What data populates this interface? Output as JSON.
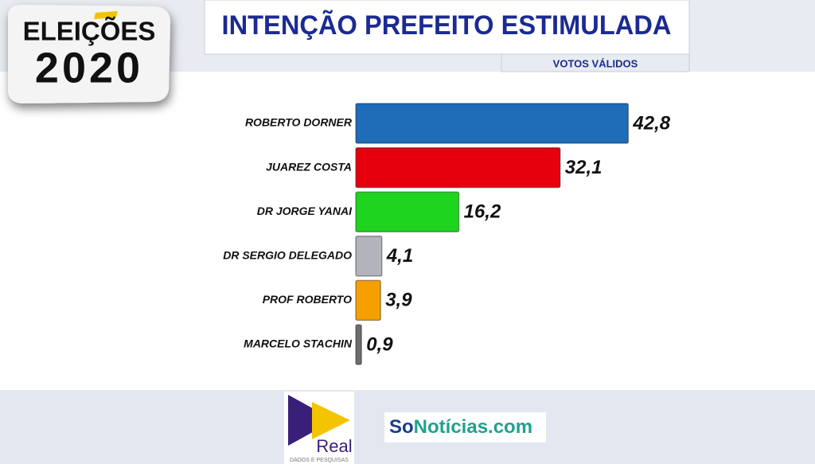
{
  "chart_data": {
    "type": "hbar",
    "title": "INTENÇÃO PREFEITO ESTIMULADA",
    "subtitle": "VOTOS VÁLIDOS",
    "categories": [
      "ROBERTO DORNER",
      "JUAREZ COSTA",
      "DR JORGE YANAI",
      "DR SERGIO DELEGADO",
      "PROF ROBERTO",
      "MARCELO STACHIN"
    ],
    "values": [
      42.8,
      32.1,
      16.2,
      4.1,
      3.9,
      0.9
    ],
    "value_labels": [
      "42,8",
      "32,1",
      "16,2",
      "4,1",
      "3,9",
      "0,9"
    ],
    "colors": [
      "#1f6cb8",
      "#e6000d",
      "#1fd41f",
      "#b3b3bb",
      "#f6a000",
      "#6e6e70"
    ]
  },
  "badge": {
    "line1": "ELEIÇÕES",
    "line2": "2020"
  },
  "logos": {
    "institute": "Real",
    "institute_tagline": "DADOS E PESQUISAS",
    "site_part1": "So",
    "site_part2": "Notícias.com"
  }
}
